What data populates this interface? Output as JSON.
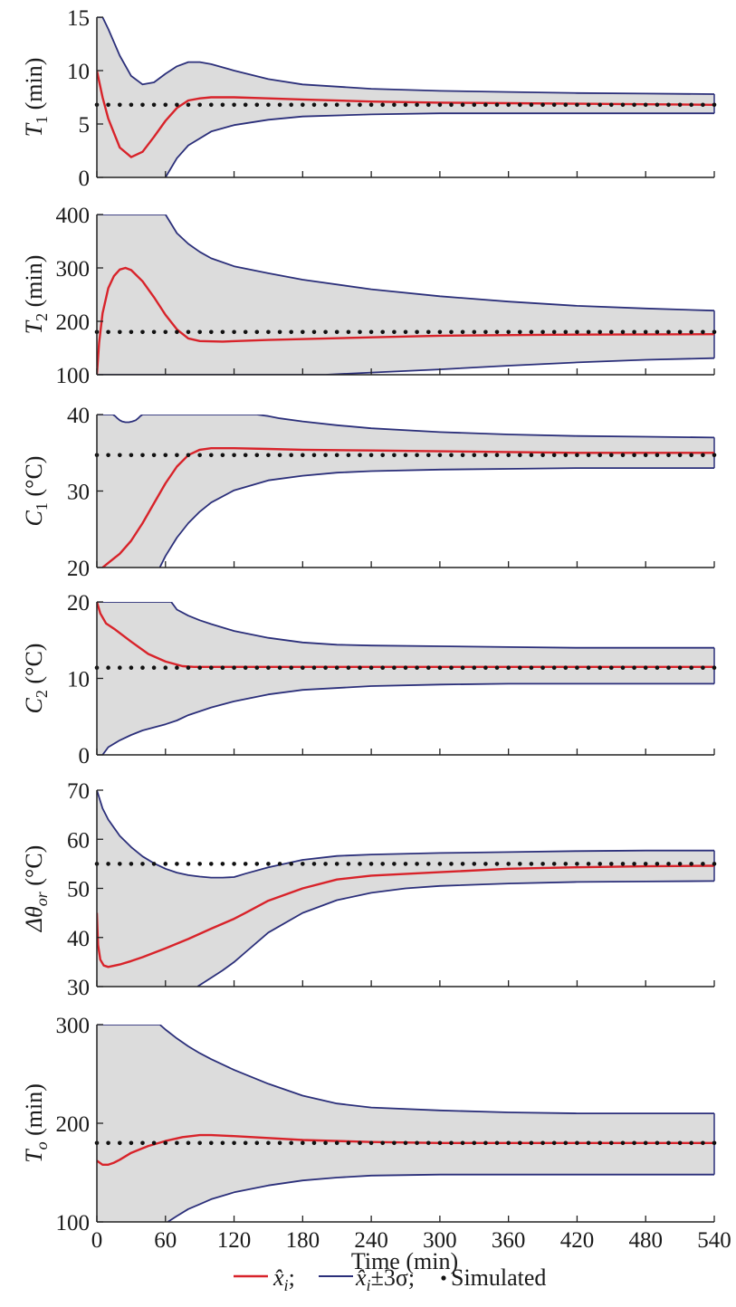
{
  "chart_data": [
    {
      "type": "line",
      "ylabel": {
        "main": "T",
        "sub": "1",
        "unit": " (min)"
      },
      "ylim": [
        0,
        15
      ],
      "yticks": [
        0,
        5,
        10,
        15
      ],
      "xlim": [
        0,
        540
      ],
      "xticks": [
        0,
        60,
        120,
        180,
        240,
        300,
        360,
        420,
        480,
        540
      ],
      "show_xtick_labels": false,
      "series": [
        {
          "role": "upper",
          "x": [
            0,
            5,
            10,
            20,
            30,
            40,
            50,
            60,
            70,
            80,
            90,
            100,
            120,
            150,
            180,
            240,
            300,
            360,
            420,
            480,
            540
          ],
          "y": [
            15,
            15,
            13.9,
            11.4,
            9.5,
            8.7,
            8.9,
            9.7,
            10.4,
            10.8,
            10.8,
            10.6,
            10.0,
            9.2,
            8.7,
            8.3,
            8.1,
            8.0,
            7.9,
            7.85,
            7.8
          ]
        },
        {
          "role": "estimate",
          "x": [
            0,
            5,
            10,
            20,
            30,
            40,
            50,
            60,
            70,
            80,
            90,
            100,
            120,
            150,
            180,
            240,
            300,
            360,
            420,
            480,
            540
          ],
          "y": [
            10,
            7.5,
            5.5,
            2.8,
            1.9,
            2.4,
            3.8,
            5.3,
            6.5,
            7.2,
            7.4,
            7.5,
            7.5,
            7.4,
            7.3,
            7.1,
            7.0,
            6.95,
            6.9,
            6.85,
            6.8
          ]
        },
        {
          "role": "lower",
          "x": [
            60,
            70,
            80,
            100,
            120,
            150,
            180,
            240,
            300,
            360,
            420,
            480,
            540
          ],
          "y": [
            0,
            1.8,
            3.0,
            4.3,
            4.9,
            5.4,
            5.7,
            5.9,
            6.0,
            6.0,
            6.0,
            6.0,
            6.0
          ]
        }
      ],
      "simulated": 6.8
    },
    {
      "type": "line",
      "ylabel": {
        "main": "T",
        "sub": "2",
        "unit": " (min)"
      },
      "ylim": [
        100,
        400
      ],
      "yticks": [
        100,
        200,
        300,
        400
      ],
      "xlim": [
        0,
        540
      ],
      "xticks": [
        0,
        60,
        120,
        180,
        240,
        300,
        360,
        420,
        480,
        540
      ],
      "show_xtick_labels": false,
      "series": [
        {
          "role": "upper",
          "x": [
            0,
            60,
            70,
            80,
            90,
            100,
            120,
            150,
            180,
            240,
            300,
            360,
            420,
            480,
            540
          ],
          "y": [
            400,
            400,
            365,
            345,
            330,
            318,
            303,
            290,
            278,
            260,
            247,
            237,
            229,
            224,
            220
          ]
        },
        {
          "role": "estimate",
          "x": [
            0,
            2,
            5,
            10,
            15,
            20,
            25,
            30,
            40,
            50,
            60,
            70,
            80,
            90,
            110,
            150,
            240,
            300,
            400,
            540
          ],
          "y": [
            100,
            160,
            215,
            262,
            285,
            297,
            300,
            296,
            275,
            245,
            212,
            185,
            168,
            163,
            162,
            165,
            170,
            173,
            175,
            176
          ]
        },
        {
          "role": "lower",
          "x": [
            0,
            60,
            120,
            200,
            240,
            300,
            360,
            420,
            480,
            540
          ],
          "y": [
            100,
            100,
            100,
            100,
            104,
            110,
            117,
            123,
            128,
            131
          ]
        }
      ],
      "simulated": 180
    },
    {
      "type": "line",
      "ylabel": {
        "main": "C",
        "sub": "1",
        "unit": " (°C)"
      },
      "ylim": [
        20,
        40
      ],
      "yticks": [
        20,
        30,
        40
      ],
      "xlim": [
        0,
        540
      ],
      "xticks": [
        0,
        60,
        120,
        180,
        240,
        300,
        360,
        420,
        480,
        540
      ],
      "show_xtick_labels": false,
      "series": [
        {
          "role": "upper",
          "x": [
            0,
            14,
            16,
            18,
            20,
            22,
            25,
            28,
            31,
            34,
            36,
            38,
            40,
            42,
            140,
            150,
            160,
            180,
            210,
            240,
            300,
            360,
            420,
            480,
            540
          ],
          "y": [
            40,
            40,
            39.8,
            39.5,
            39.25,
            39.1,
            39.0,
            39.0,
            39.1,
            39.25,
            39.5,
            39.8,
            40,
            40,
            40,
            39.8,
            39.5,
            39.1,
            38.6,
            38.2,
            37.7,
            37.4,
            37.2,
            37.1,
            37.0
          ]
        },
        {
          "role": "estimate",
          "x": [
            5,
            10,
            20,
            30,
            40,
            50,
            60,
            70,
            80,
            90,
            100,
            120,
            150,
            180,
            240,
            300,
            360,
            420,
            480,
            540
          ],
          "y": [
            20,
            20.6,
            21.8,
            23.5,
            25.8,
            28.4,
            31.0,
            33.2,
            34.7,
            35.4,
            35.6,
            35.6,
            35.5,
            35.4,
            35.3,
            35.2,
            35.1,
            35.0,
            35.0,
            35.0
          ]
        },
        {
          "role": "lower",
          "x": [
            55,
            60,
            70,
            80,
            90,
            100,
            120,
            150,
            180,
            210,
            240,
            300,
            360,
            420,
            480,
            540
          ],
          "y": [
            20,
            21.5,
            23.9,
            25.8,
            27.3,
            28.5,
            30.1,
            31.4,
            32.0,
            32.4,
            32.6,
            32.8,
            32.9,
            33.0,
            33.0,
            33.0
          ]
        }
      ],
      "simulated": 34.7
    },
    {
      "type": "line",
      "ylabel": {
        "main": "C",
        "sub": "2",
        "unit": " (°C)"
      },
      "ylim": [
        0,
        20
      ],
      "yticks": [
        0,
        10,
        20
      ],
      "xlim": [
        0,
        540
      ],
      "xticks": [
        0,
        60,
        120,
        180,
        240,
        300,
        360,
        420,
        480,
        540
      ],
      "show_xtick_labels": false,
      "series": [
        {
          "role": "upper",
          "x": [
            0,
            65,
            70,
            80,
            90,
            100,
            120,
            150,
            180,
            210,
            240,
            300,
            360,
            420,
            480,
            540
          ],
          "y": [
            20,
            20,
            19.0,
            18.2,
            17.6,
            17.1,
            16.2,
            15.3,
            14.7,
            14.4,
            14.3,
            14.2,
            14.1,
            14.0,
            14.0,
            14.0
          ]
        },
        {
          "role": "estimate",
          "x": [
            0,
            3,
            8,
            15,
            30,
            45,
            60,
            75,
            85,
            100,
            150,
            240,
            300,
            400,
            540
          ],
          "y": [
            20,
            18.5,
            17.2,
            16.5,
            14.8,
            13.2,
            12.2,
            11.6,
            11.5,
            11.5,
            11.5,
            11.5,
            11.5,
            11.5,
            11.5
          ]
        },
        {
          "role": "lower",
          "x": [
            5,
            10,
            20,
            30,
            40,
            50,
            60,
            70,
            80,
            100,
            120,
            150,
            180,
            240,
            300,
            360,
            420,
            480,
            540
          ],
          "y": [
            0,
            1.0,
            1.9,
            2.6,
            3.2,
            3.6,
            4.0,
            4.5,
            5.2,
            6.2,
            7.0,
            7.9,
            8.5,
            9.0,
            9.2,
            9.3,
            9.3,
            9.3,
            9.3
          ]
        }
      ],
      "simulated": 11.4
    },
    {
      "type": "line",
      "ylabel": {
        "main": "Δθ",
        "sub": "or",
        "unit": " (°C)"
      },
      "ylim": [
        30,
        70
      ],
      "yticks": [
        30,
        40,
        50,
        60,
        70
      ],
      "xlim": [
        0,
        540
      ],
      "xticks": [
        0,
        60,
        120,
        180,
        240,
        300,
        360,
        420,
        480,
        540
      ],
      "show_xtick_labels": false,
      "series": [
        {
          "role": "upper",
          "x": [
            0,
            5,
            10,
            20,
            30,
            40,
            50,
            60,
            70,
            80,
            90,
            100,
            110,
            120,
            130,
            150,
            180,
            210,
            240,
            300,
            360,
            420,
            480,
            540
          ],
          "y": [
            70,
            66.3,
            64.0,
            60.7,
            58.4,
            56.5,
            55.1,
            54.0,
            53.2,
            52.7,
            52.4,
            52.2,
            52.2,
            52.3,
            53.0,
            54.3,
            55.8,
            56.6,
            56.9,
            57.2,
            57.4,
            57.6,
            57.7,
            57.7
          ]
        },
        {
          "role": "estimate",
          "x": [
            0,
            1,
            3,
            6,
            10,
            20,
            30,
            40,
            60,
            80,
            100,
            120,
            130,
            150,
            180,
            210,
            240,
            300,
            360,
            420,
            480,
            540
          ],
          "y": [
            45,
            38.5,
            35.5,
            34.3,
            34.0,
            34.5,
            35.2,
            36.0,
            37.8,
            39.7,
            41.8,
            43.8,
            45.0,
            47.5,
            50.0,
            51.8,
            52.6,
            53.3,
            54.0,
            54.3,
            54.5,
            54.6
          ]
        },
        {
          "role": "lower",
          "x": [
            88,
            100,
            110,
            120,
            130,
            150,
            180,
            210,
            240,
            270,
            300,
            360,
            420,
            480,
            540
          ],
          "y": [
            30,
            31.8,
            33.3,
            35.0,
            37.0,
            41.0,
            45.0,
            47.6,
            49.1,
            50.0,
            50.5,
            51.0,
            51.3,
            51.4,
            51.5
          ]
        }
      ],
      "simulated": 55
    },
    {
      "type": "line",
      "ylabel": {
        "main": "T",
        "sub": "o",
        "unit": " (min)"
      },
      "ylim": [
        100,
        300
      ],
      "yticks": [
        100,
        200,
        300
      ],
      "xlim": [
        0,
        540
      ],
      "xticks": [
        0,
        60,
        120,
        180,
        240,
        300,
        360,
        420,
        480,
        540
      ],
      "show_xtick_labels": true,
      "xlabel": "Time (min)",
      "series": [
        {
          "role": "upper",
          "x": [
            0,
            55,
            60,
            70,
            80,
            90,
            100,
            120,
            150,
            180,
            210,
            240,
            300,
            360,
            420,
            480,
            540
          ],
          "y": [
            300,
            300,
            295,
            286,
            278,
            271,
            265,
            254,
            240,
            228,
            220,
            216,
            213,
            211,
            210,
            210,
            210
          ]
        },
        {
          "role": "estimate",
          "x": [
            0,
            5,
            10,
            15,
            20,
            30,
            45,
            60,
            75,
            90,
            100,
            120,
            150,
            180,
            240,
            300,
            360,
            420,
            480,
            540
          ],
          "y": [
            162,
            158,
            158,
            160,
            163,
            170,
            177,
            182,
            186,
            188,
            188,
            187,
            185,
            183,
            181,
            180,
            180,
            180,
            180,
            180
          ]
        },
        {
          "role": "lower",
          "x": [
            62,
            70,
            80,
            90,
            100,
            120,
            150,
            180,
            210,
            240,
            300,
            360,
            420,
            480,
            540
          ],
          "y": [
            100,
            106,
            113,
            118,
            123,
            130,
            137,
            142,
            145,
            147,
            148,
            148,
            148,
            148,
            148
          ]
        }
      ],
      "simulated": 180
    }
  ],
  "legend": {
    "estimate_label": "x̂",
    "estimate_sub": "i",
    "estimate_suffix": ";",
    "band_label": "x̂",
    "band_sub": "i",
    "band_suffix": "±3σ;",
    "simulated_label": "Simulated"
  },
  "colors": {
    "estimate": "#d8232a",
    "band_line": "#2b2f7a",
    "band_fill": "#dcdcdc",
    "simulated": "#111111",
    "axis": "#222222"
  }
}
